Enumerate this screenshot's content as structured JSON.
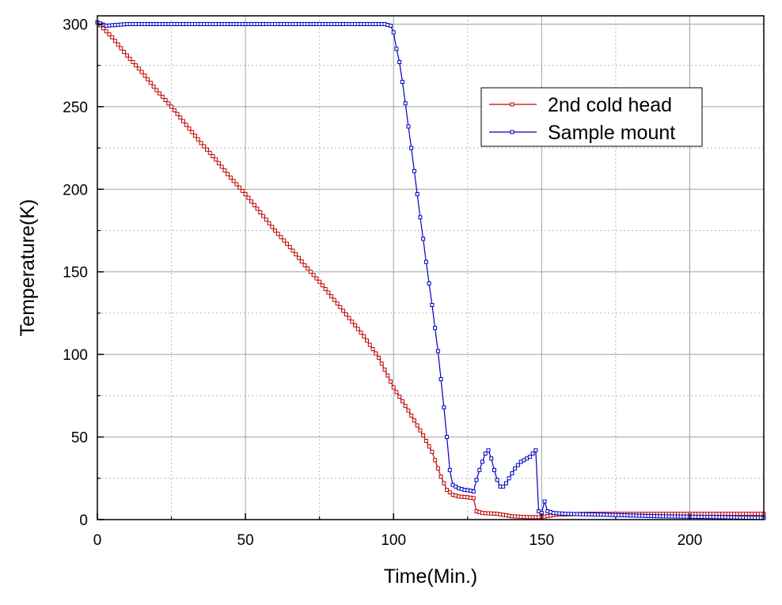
{
  "chart_data": {
    "type": "line",
    "title": "",
    "xlabel": "Time(Min.)",
    "ylabel": "Temperature(K)",
    "xlim": [
      0,
      225
    ],
    "ylim": [
      0,
      305
    ],
    "x_ticks": [
      0,
      50,
      100,
      150,
      200
    ],
    "y_ticks": [
      0,
      50,
      100,
      150,
      200,
      250,
      300
    ],
    "x_tick_labels": [
      "0",
      "50",
      "100",
      "150",
      "200"
    ],
    "y_tick_labels": [
      "0",
      "50",
      "100",
      "150",
      "200",
      "250",
      "300"
    ],
    "grid": true,
    "legend_position": "top-right",
    "marker": "open-square",
    "series": [
      {
        "name": "2nd cold head",
        "color": "#c00000",
        "points": [
          [
            0,
            301
          ],
          [
            5,
            292
          ],
          [
            10,
            281
          ],
          [
            15,
            271
          ],
          [
            20,
            260
          ],
          [
            25,
            250
          ],
          [
            30,
            239
          ],
          [
            35,
            228
          ],
          [
            40,
            218
          ],
          [
            45,
            207
          ],
          [
            50,
            197
          ],
          [
            55,
            186
          ],
          [
            60,
            175
          ],
          [
            65,
            165
          ],
          [
            70,
            154
          ],
          [
            75,
            144
          ],
          [
            80,
            133
          ],
          [
            85,
            122
          ],
          [
            90,
            111
          ],
          [
            95,
            98
          ],
          [
            100,
            80
          ],
          [
            105,
            66
          ],
          [
            110,
            51
          ],
          [
            113,
            41
          ],
          [
            116,
            26
          ],
          [
            118,
            18
          ],
          [
            120,
            15
          ],
          [
            122,
            14
          ],
          [
            125,
            13.5
          ],
          [
            127,
            13
          ],
          [
            128,
            5
          ],
          [
            130,
            4
          ],
          [
            135,
            3.5
          ],
          [
            140,
            2
          ],
          [
            145,
            1.5
          ],
          [
            150,
            1.5
          ],
          [
            155,
            3
          ],
          [
            165,
            3.5
          ],
          [
            180,
            3.5
          ],
          [
            200,
            3.5
          ],
          [
            225,
            3.5
          ]
        ]
      },
      {
        "name": "Sample mount",
        "color": "#0000c0",
        "points": [
          [
            0,
            301
          ],
          [
            3,
            299
          ],
          [
            10,
            300
          ],
          [
            20,
            300
          ],
          [
            40,
            300
          ],
          [
            60,
            300
          ],
          [
            80,
            300
          ],
          [
            97,
            300
          ],
          [
            99,
            299
          ],
          [
            100,
            295
          ],
          [
            101,
            285
          ],
          [
            102,
            277
          ],
          [
            103,
            265
          ],
          [
            104,
            252
          ],
          [
            105,
            238
          ],
          [
            106,
            225
          ],
          [
            107,
            211
          ],
          [
            108,
            197
          ],
          [
            109,
            183
          ],
          [
            110,
            170
          ],
          [
            111,
            156
          ],
          [
            112,
            143
          ],
          [
            113,
            130
          ],
          [
            114,
            116
          ],
          [
            115,
            102
          ],
          [
            116,
            85
          ],
          [
            117,
            68
          ],
          [
            118,
            50
          ],
          [
            119,
            30
          ],
          [
            120,
            21
          ],
          [
            122,
            19
          ],
          [
            124,
            18
          ],
          [
            126,
            17.5
          ],
          [
            127,
            17
          ],
          [
            128,
            24
          ],
          [
            129,
            30
          ],
          [
            130,
            35
          ],
          [
            131,
            40
          ],
          [
            132,
            42
          ],
          [
            133,
            37
          ],
          [
            134,
            30
          ],
          [
            135,
            24
          ],
          [
            136,
            20
          ],
          [
            137,
            20
          ],
          [
            138,
            22
          ],
          [
            139,
            25
          ],
          [
            140,
            28
          ],
          [
            141,
            31
          ],
          [
            142,
            33
          ],
          [
            143,
            35
          ],
          [
            144,
            36
          ],
          [
            145,
            37
          ],
          [
            146,
            38
          ],
          [
            147,
            40
          ],
          [
            148,
            42
          ],
          [
            149,
            5
          ],
          [
            150,
            4
          ],
          [
            151,
            11
          ],
          [
            152,
            5
          ],
          [
            154,
            4
          ],
          [
            158,
            3.5
          ],
          [
            170,
            3
          ],
          [
            190,
            2
          ],
          [
            210,
            1.5
          ],
          [
            225,
            1
          ]
        ]
      }
    ]
  }
}
